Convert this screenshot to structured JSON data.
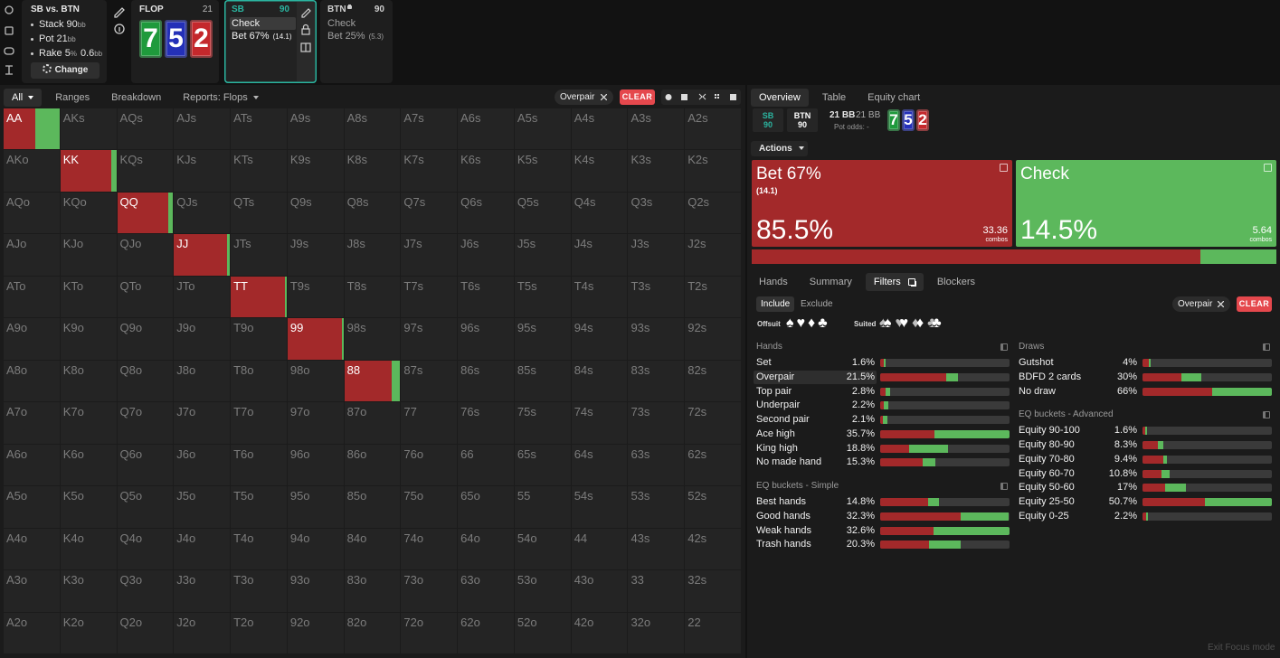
{
  "spot": {
    "title": "SB vs. BTN",
    "stats": [
      {
        "label": "Stack",
        "value": "90",
        "unit": "bb"
      },
      {
        "label": "Pot",
        "value": "21",
        "unit": "bb"
      },
      {
        "label": "Rake",
        "value": "5",
        "unit": "%",
        "extra": "0.6",
        "extra_unit": "bb"
      }
    ],
    "change_button": "Change"
  },
  "flop": {
    "title": "FLOP",
    "pot": "21",
    "cards": [
      {
        "rank": "7",
        "color": "#1f9a3c"
      },
      {
        "rank": "5",
        "color": "#2430b8"
      },
      {
        "rank": "2",
        "color": "#c4282c"
      }
    ]
  },
  "sb": {
    "title": "SB",
    "stack": "90",
    "actions": [
      {
        "name": "Check",
        "selected": true
      },
      {
        "name": "Bet 67%",
        "size": "(14.1)"
      }
    ]
  },
  "btn": {
    "title": "BTN",
    "stack": "90",
    "actions": [
      {
        "name": "Check"
      },
      {
        "name": "Bet 25%",
        "size": "(5.3)"
      }
    ]
  },
  "toolbar": {
    "tabs": [
      {
        "text": "All",
        "active": true,
        "dropdown": true
      },
      {
        "text": "Ranges"
      },
      {
        "text": "Breakdown"
      },
      {
        "text": "Reports: Flops",
        "dropdown": true
      }
    ],
    "filter": "Overpair",
    "clear": "CLEAR"
  },
  "colors": {
    "bet": "#a3292a",
    "check": "#5cb85c"
  },
  "grid": {
    "rows": [
      [
        {
          "label": "AA",
          "bet": 56,
          "check": 44
        },
        "AKs",
        "AQs",
        "AJs",
        "ATs",
        "A9s",
        "A8s",
        "A7s",
        "A6s",
        "A5s",
        "A4s",
        "A3s",
        "A2s"
      ],
      [
        "AKo",
        {
          "label": "KK",
          "bet": 90,
          "check": 10
        },
        "KQs",
        "KJs",
        "KTs",
        "K9s",
        "K8s",
        "K7s",
        "K6s",
        "K5s",
        "K4s",
        "K3s",
        "K2s"
      ],
      [
        "AQo",
        "KQo",
        {
          "label": "QQ",
          "bet": 90,
          "check": 10
        },
        "QJs",
        "QTs",
        "Q9s",
        "Q8s",
        "Q7s",
        "Q6s",
        "Q5s",
        "Q4s",
        "Q3s",
        "Q2s"
      ],
      [
        "AJo",
        "KJo",
        "QJo",
        {
          "label": "JJ",
          "bet": 94,
          "check": 6
        },
        "JTs",
        "J9s",
        "J8s",
        "J7s",
        "J6s",
        "J5s",
        "J4s",
        "J3s",
        "J2s"
      ],
      [
        "ATo",
        "KTo",
        "QTo",
        "JTo",
        {
          "label": "TT",
          "bet": 95,
          "check": 5
        },
        "T9s",
        "T8s",
        "T7s",
        "T6s",
        "T5s",
        "T4s",
        "T3s",
        "T2s"
      ],
      [
        "A9o",
        "K9o",
        "Q9o",
        "J9o",
        "T9o",
        {
          "label": "99",
          "bet": 96,
          "check": 4
        },
        "98s",
        "97s",
        "96s",
        "95s",
        "94s",
        "93s",
        "92s"
      ],
      [
        "A8o",
        "K8o",
        "Q8o",
        "J8o",
        "T8o",
        "98o",
        {
          "label": "88",
          "bet": 83,
          "check": 17
        },
        "87s",
        "86s",
        "85s",
        "84s",
        "83s",
        "82s"
      ],
      [
        "A7o",
        "K7o",
        "Q7o",
        "J7o",
        "T7o",
        "97o",
        "87o",
        "77",
        "76s",
        "75s",
        "74s",
        "73s",
        "72s"
      ],
      [
        "A6o",
        "K6o",
        "Q6o",
        "J6o",
        "T6o",
        "96o",
        "86o",
        "76o",
        "66",
        "65s",
        "64s",
        "63s",
        "62s"
      ],
      [
        "A5o",
        "K5o",
        "Q5o",
        "J5o",
        "T5o",
        "95o",
        "85o",
        "75o",
        "65o",
        "55",
        "54s",
        "53s",
        "52s"
      ],
      [
        "A4o",
        "K4o",
        "Q4o",
        "J4o",
        "T4o",
        "94o",
        "84o",
        "74o",
        "64o",
        "54o",
        "44",
        "43s",
        "42s"
      ],
      [
        "A3o",
        "K3o",
        "Q3o",
        "J3o",
        "T3o",
        "93o",
        "83o",
        "73o",
        "63o",
        "53o",
        "43o",
        "33",
        "32s"
      ],
      [
        "A2o",
        "K2o",
        "Q2o",
        "J2o",
        "T2o",
        "92o",
        "82o",
        "72o",
        "62o",
        "52o",
        "42o",
        "32o",
        "22"
      ]
    ]
  },
  "overview": {
    "tabs": [
      {
        "text": "Overview",
        "active": true
      },
      {
        "text": "Table"
      },
      {
        "text": "Equity chart"
      }
    ],
    "players": [
      {
        "name": "SB",
        "stack": "90",
        "color": "#2bb5a0"
      },
      {
        "name": "BTN",
        "stack": "90",
        "color": "#ffffff"
      }
    ],
    "pot": "21 BB",
    "pot_total": "21 BB",
    "pot_odds_label": "Pot odds:",
    "pot_odds": "-",
    "actions_menu": "Actions",
    "actions": [
      {
        "name": "Bet 67%",
        "size": "(14.1)",
        "value": 85.5,
        "label": "85.5%",
        "combos": "33.36",
        "combos_label": "combos",
        "color": "#a3292a"
      },
      {
        "name": "Check",
        "value": 14.5,
        "label": "14.5%",
        "combos": "5.64",
        "combos_label": "combos",
        "color": "#5cb85c"
      }
    ]
  },
  "details": {
    "tabs": [
      {
        "text": "Hands"
      },
      {
        "text": "Summary"
      },
      {
        "text": "Filters",
        "active": true,
        "icon": true
      },
      {
        "text": "Blockers"
      }
    ],
    "include": "Include",
    "exclude": "Exclude",
    "filter": "Overpair",
    "clear": "CLEAR",
    "offsuit": "Offsuit",
    "offsuit_suits": [
      "♠",
      "♥",
      "♦",
      "♣"
    ],
    "suited": "Suited",
    "suited_suits": [
      "♠",
      "♥",
      "♦",
      "♣"
    ],
    "columns": [
      [
        {
          "title": "Hands",
          "rows": [
            {
              "name": "Set",
              "value": 1.6,
              "label": "1.6%",
              "bet": 70
            },
            {
              "name": "Overpair",
              "value": 21.5,
              "label": "21.5%",
              "bet": 85,
              "selected": true
            },
            {
              "name": "Top pair",
              "value": 2.8,
              "label": "2.8%",
              "bet": 55
            },
            {
              "name": "Underpair",
              "value": 2.2,
              "label": "2.2%",
              "bet": 50
            },
            {
              "name": "Second pair",
              "value": 2.1,
              "label": "2.1%",
              "bet": 40
            },
            {
              "name": "Ace high",
              "value": 35.7,
              "label": "35.7%",
              "bet": 42
            },
            {
              "name": "King high",
              "value": 18.8,
              "label": "18.8%",
              "bet": 42
            },
            {
              "name": "No made hand",
              "value": 15.3,
              "label": "15.3%",
              "bet": 76
            }
          ]
        },
        {
          "title": "EQ buckets - Simple",
          "rows": [
            {
              "name": "Best hands",
              "value": 14.8,
              "label": "14.8%",
              "bet": 82
            },
            {
              "name": "Good hands",
              "value": 32.3,
              "label": "32.3%",
              "bet": 63
            },
            {
              "name": "Weak hands",
              "value": 32.6,
              "label": "32.6%",
              "bet": 41
            },
            {
              "name": "Trash hands",
              "value": 20.3,
              "label": "20.3%",
              "bet": 61
            }
          ]
        }
      ],
      [
        {
          "title": "Draws",
          "rows": [
            {
              "name": "Gutshot",
              "value": 4,
              "label": "4%",
              "bet": 80
            },
            {
              "name": "BDFD 2 cards",
              "value": 30,
              "label": "30%",
              "bet": 66
            },
            {
              "name": "No draw",
              "value": 66,
              "label": "66%",
              "bet": 54
            }
          ]
        },
        {
          "title": "EQ buckets - Advanced",
          "rows": [
            {
              "name": "Equity 90-100",
              "value": 1.6,
              "label": "1.6%",
              "bet": 60
            },
            {
              "name": "Equity 80-90",
              "value": 8.3,
              "label": "8.3%",
              "bet": 74
            },
            {
              "name": "Equity 70-80",
              "value": 9.4,
              "label": "9.4%",
              "bet": 88
            },
            {
              "name": "Equity 60-70",
              "value": 10.8,
              "label": "10.8%",
              "bet": 70
            },
            {
              "name": "Equity 50-60",
              "value": 17,
              "label": "17%",
              "bet": 52
            },
            {
              "name": "Equity 25-50",
              "value": 50.7,
              "label": "50.7%",
              "bet": 48
            },
            {
              "name": "Equity 0-25",
              "value": 2.2,
              "label": "2.2%",
              "bet": 60
            }
          ]
        }
      ]
    ]
  },
  "footer": "Exit Focus mode"
}
